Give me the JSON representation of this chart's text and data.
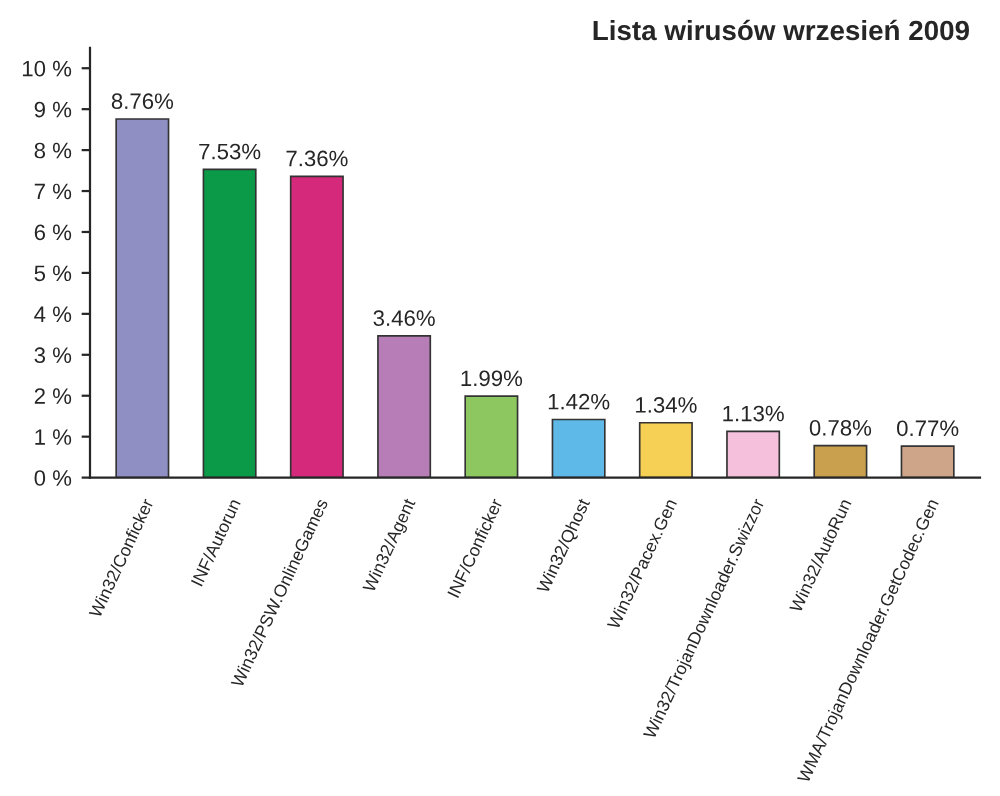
{
  "chart_data": {
    "type": "bar",
    "title": "Lista wirusów wrzesień 2009",
    "categories": [
      "Win32/Conficker",
      "INF/Autorun",
      "Win32/PSW.OnlineGames",
      "Win32/Agent",
      "INF/Conficker",
      "Win32/Qhost",
      "Win32/Pacex.Gen",
      "Win32/TrojanDownloader.Swizzor",
      "Win32/AutoRun",
      "WMA/TrojanDownloader.GetCodec.Gen"
    ],
    "values": [
      8.76,
      7.53,
      7.36,
      3.46,
      1.99,
      1.42,
      1.34,
      1.13,
      0.78,
      0.77
    ],
    "value_labels": [
      "8.76%",
      "7.53%",
      "7.36%",
      "3.46%",
      "1.99%",
      "1.42%",
      "1.34%",
      "1.13%",
      "0.78%",
      "0.77%"
    ],
    "colors": [
      "#8f8fc4",
      "#0a9a48",
      "#d52a7b",
      "#b77db6",
      "#8cc760",
      "#5eb8e8",
      "#f6cf55",
      "#f4c0dc",
      "#c9a04d",
      "#cfa58a"
    ],
    "ylim": [
      0,
      10.5
    ],
    "yticks": [
      {
        "value": 0,
        "label": "0 %"
      },
      {
        "value": 1,
        "label": "1 %"
      },
      {
        "value": 2,
        "label": "2 %"
      },
      {
        "value": 3,
        "label": "3 %"
      },
      {
        "value": 4,
        "label": "4 %"
      },
      {
        "value": 5,
        "label": "5 %"
      },
      {
        "value": 6,
        "label": "6 %"
      },
      {
        "value": 7,
        "label": "7 %"
      },
      {
        "value": 8,
        "label": "8 %"
      },
      {
        "value": 9,
        "label": "9 %"
      },
      {
        "value": 10,
        "label": "10 %"
      }
    ],
    "grid": false,
    "legend": false
  }
}
